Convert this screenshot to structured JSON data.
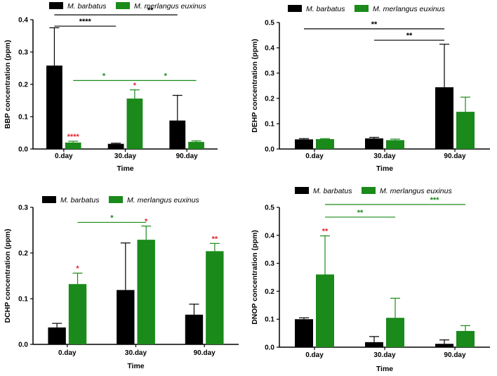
{
  "colors": {
    "barbatus": "#000000",
    "euxinus": "#1a8a1a",
    "red_sig": "#e0272f",
    "black_sig": "#000000",
    "green_sig": "#1a8a1a"
  },
  "chart_data": [
    {
      "type": "bar",
      "id": "bbp",
      "xlabel": "Time",
      "ylabel": "BBP concentration (ppm)",
      "categories": [
        "0.day",
        "30.day",
        "90.day"
      ],
      "ylim": [
        0,
        0.4
      ],
      "yticks": [
        "0.0",
        "0.1",
        "0.2",
        "0.3",
        "0.4"
      ],
      "legend": [
        "M. barbatus",
        "M. merlangus euxinus"
      ],
      "series": [
        {
          "name": "M. barbatus",
          "values": [
            0.258,
            0.016,
            0.088
          ],
          "errors": [
            0.117,
            0.002,
            0.078
          ]
        },
        {
          "name": "M. merlangus euxinus",
          "values": [
            0.02,
            0.156,
            0.022
          ],
          "errors": [
            0.004,
            0.027,
            0.003
          ]
        }
      ],
      "bar_marks": [
        {
          "series": 1,
          "cat": 0,
          "text": "****",
          "color": "red"
        },
        {
          "series": 1,
          "cat": 1,
          "text": "*",
          "color": "red"
        }
      ],
      "brackets": [
        {
          "from": [
            0,
            0
          ],
          "to": [
            1,
            0
          ],
          "y": 0.38,
          "text": "****",
          "color": "black",
          "label_pos": "mid"
        },
        {
          "from": [
            0,
            0
          ],
          "to": [
            2,
            0
          ],
          "y": 0.415,
          "text": "**",
          "color": "black",
          "label_pos": "right"
        },
        {
          "from": [
            0,
            1
          ],
          "to": [
            1,
            1
          ],
          "y": 0.212,
          "text": "*",
          "color": "green",
          "label_pos": "mid"
        },
        {
          "from": [
            1,
            1
          ],
          "to": [
            2,
            1
          ],
          "y": 0.212,
          "text": "*",
          "color": "green",
          "label_pos": "mid"
        }
      ]
    },
    {
      "type": "bar",
      "id": "dehp",
      "xlabel": "Time",
      "ylabel": "DEHP concentration (ppm)",
      "categories": [
        "0.day",
        "30.day",
        "90.day"
      ],
      "ylim": [
        0,
        0.5
      ],
      "yticks": [
        "0.0",
        "0.1",
        "0.2",
        "0.3",
        "0.4",
        "0.5"
      ],
      "legend": [
        "M. barbatus",
        "M. merlangus euxinus"
      ],
      "series": [
        {
          "name": "M. barbatus",
          "values": [
            0.038,
            0.042,
            0.244
          ],
          "errors": [
            0.003,
            0.004,
            0.17
          ]
        },
        {
          "name": "M. merlangus euxinus",
          "values": [
            0.039,
            0.035,
            0.147
          ],
          "errors": [
            0.002,
            0.004,
            0.058
          ]
        }
      ],
      "bar_marks": [],
      "brackets": [
        {
          "from": [
            0,
            0
          ],
          "to": [
            2,
            0
          ],
          "y": 0.475,
          "text": "**",
          "color": "black",
          "label_pos": "mid"
        },
        {
          "from": [
            1,
            0
          ],
          "to": [
            2,
            0
          ],
          "y": 0.43,
          "text": "**",
          "color": "black",
          "label_pos": "mid"
        }
      ]
    },
    {
      "type": "bar",
      "id": "dchp",
      "xlabel": "Time",
      "ylabel": "DCHP concentration (ppm)",
      "categories": [
        "0.day",
        "30.day",
        "90.day"
      ],
      "ylim": [
        0,
        0.3
      ],
      "yticks": [
        "0.0",
        "0.1",
        "0.2",
        "0.3"
      ],
      "legend": [
        "M. barbatus",
        "M. merlangus euxinus"
      ],
      "series": [
        {
          "name": "M. barbatus",
          "values": [
            0.037,
            0.119,
            0.065
          ],
          "errors": [
            0.009,
            0.103,
            0.023
          ]
        },
        {
          "name": "M. merlangus euxinus",
          "values": [
            0.132,
            0.229,
            0.204
          ],
          "errors": [
            0.024,
            0.03,
            0.017
          ]
        }
      ],
      "bar_marks": [
        {
          "series": 1,
          "cat": 0,
          "text": "*",
          "color": "red"
        },
        {
          "series": 1,
          "cat": 1,
          "text": "*",
          "color": "red"
        },
        {
          "series": 1,
          "cat": 2,
          "text": "**",
          "color": "red"
        }
      ],
      "brackets": [
        {
          "from": [
            0,
            1
          ],
          "to": [
            1,
            1
          ],
          "y": 0.267,
          "text": "*",
          "color": "green",
          "label_pos": "mid"
        }
      ]
    },
    {
      "type": "bar",
      "id": "dnop",
      "xlabel": "Time",
      "ylabel": "DNOP concentration (ppm)",
      "categories": [
        "0.day",
        "30.day",
        "90.day"
      ],
      "ylim": [
        0,
        0.5
      ],
      "yticks": [
        "0.0",
        "0.1",
        "0.2",
        "0.3",
        "0.4",
        "0.5"
      ],
      "legend": [
        "M. barbatus",
        "M. merlangus euxinus"
      ],
      "series": [
        {
          "name": "M. barbatus",
          "values": [
            0.1,
            0.018,
            0.012
          ],
          "errors": [
            0.005,
            0.02,
            0.014
          ]
        },
        {
          "name": "M. merlangus euxinus",
          "values": [
            0.26,
            0.105,
            0.058
          ],
          "errors": [
            0.138,
            0.07,
            0.019
          ]
        }
      ],
      "bar_marks": [
        {
          "series": 1,
          "cat": 0,
          "text": "**",
          "color": "red"
        }
      ],
      "brackets": [
        {
          "from": [
            0,
            1
          ],
          "to": [
            1,
            1
          ],
          "y": 0.465,
          "text": "**",
          "color": "green",
          "label_pos": "mid"
        },
        {
          "from": [
            0,
            1
          ],
          "to": [
            2,
            1
          ],
          "y": 0.51,
          "text": "***",
          "color": "green",
          "label_pos": "right"
        }
      ]
    }
  ]
}
